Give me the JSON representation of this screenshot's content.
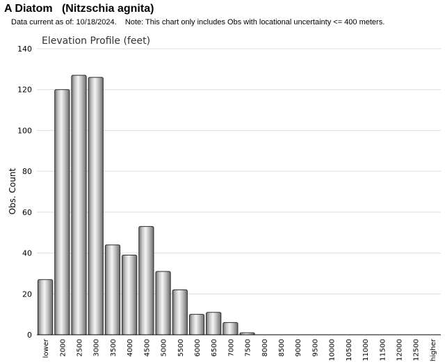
{
  "page": {
    "title": "A Diatom   (Nitzschia agnita)",
    "subtitle": "Data current as of: 10/18/2024.    Note: This chart only includes Obs with locational uncertainty <= 400 meters."
  },
  "chart_data": {
    "type": "bar",
    "title": "Elevation Profile (feet)",
    "xlabel": "",
    "ylabel": "Obs. Count",
    "ylim": [
      0,
      140
    ],
    "yticks": [
      0,
      20,
      40,
      60,
      80,
      100,
      120,
      140
    ],
    "grid": true,
    "legend": "none",
    "bar_color": "#b8b8b8",
    "categories": [
      "lower",
      "2000",
      "2500",
      "3000",
      "3500",
      "4000",
      "4500",
      "5000",
      "5500",
      "6000",
      "6500",
      "7000",
      "7500",
      "8000",
      "8500",
      "9000",
      "9500",
      "10000",
      "10500",
      "11000",
      "11500",
      "12000",
      "12500",
      "higher"
    ],
    "values": [
      27,
      120,
      127,
      126,
      44,
      39,
      53,
      31,
      22,
      10,
      11,
      6,
      1,
      0,
      0,
      0,
      0,
      0,
      0,
      0,
      0,
      0,
      0,
      0
    ]
  }
}
